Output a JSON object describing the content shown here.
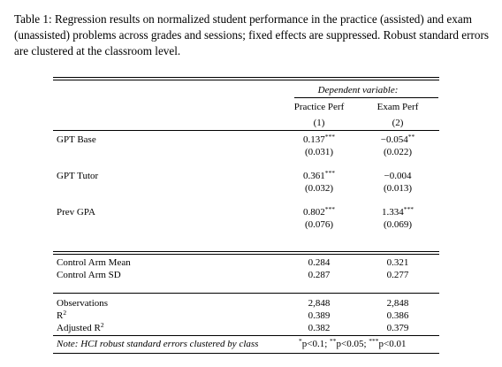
{
  "caption": "Table 1: Regression results on normalized student performance in the practice (assisted) and exam (unassisted) problems across grades and sessions; fixed effects are suppressed. Robust standard errors are clustered at the classroom level.",
  "header": {
    "dependent_variable": "Dependent variable:",
    "col1_name": "Practice Perf",
    "col2_name": "Exam Perf",
    "col1_num": "(1)",
    "col2_num": "(2)"
  },
  "coefficients": [
    {
      "label": "GPT Base",
      "c1": "0.137",
      "c1_sig": "***",
      "c1_se": "(0.031)",
      "c2": "−0.054",
      "c2_sig": "**",
      "c2_se": "(0.022)"
    },
    {
      "label": "GPT Tutor",
      "c1": "0.361",
      "c1_sig": "***",
      "c1_se": "(0.032)",
      "c2": "−0.004",
      "c2_sig": "",
      "c2_se": "(0.013)"
    },
    {
      "label": "Prev GPA",
      "c1": "0.802",
      "c1_sig": "***",
      "c1_se": "(0.076)",
      "c2": "1.334",
      "c2_sig": "***",
      "c2_se": "(0.069)"
    }
  ],
  "control": [
    {
      "label": "Control Arm Mean",
      "c1": "0.284",
      "c2": "0.321"
    },
    {
      "label": "Control Arm SD",
      "c1": "0.287",
      "c2": "0.277"
    }
  ],
  "stats": [
    {
      "label": "Observations",
      "c1": "2,848",
      "c2": "2,848"
    },
    {
      "label": "R",
      "label_sup": "2",
      "c1": "0.389",
      "c2": "0.386"
    },
    {
      "label": "Adjusted R",
      "label_sup": "2",
      "c1": "0.382",
      "c2": "0.379"
    }
  ],
  "note": {
    "label": "Note: HCI robust standard errors clustered by class",
    "sig_1": "*",
    "sig_1_text": "p<0.1; ",
    "sig_2": "**",
    "sig_2_text": "p<0.05; ",
    "sig_3": "***",
    "sig_3_text": "p<0.01"
  }
}
